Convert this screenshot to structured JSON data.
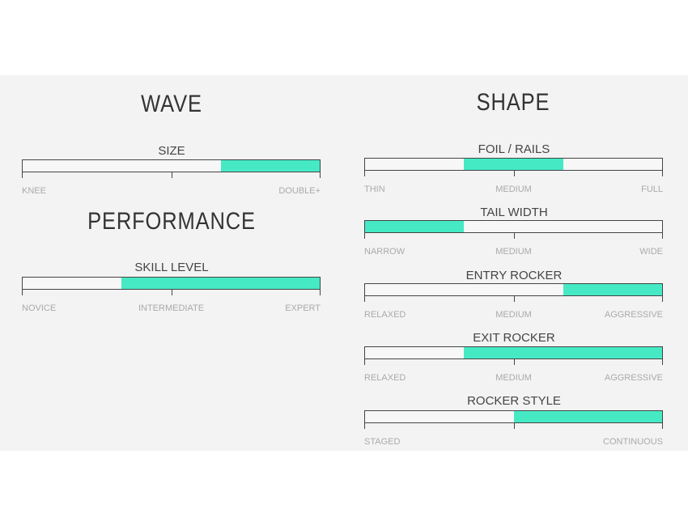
{
  "accent_color": "#45eac5",
  "wave": {
    "title": "WAVE",
    "size": {
      "label": "SIZE",
      "fill": [
        0.667,
        1
      ],
      "scale": [
        "KNEE",
        "",
        "DOUBLE+"
      ]
    }
  },
  "performance": {
    "title": "PERFORMANCE",
    "skill": {
      "label": "SKILL LEVEL",
      "fill": [
        0.333,
        1
      ],
      "scale": [
        "NOVICE",
        "INTERMEDIATE",
        "EXPERT"
      ]
    }
  },
  "shape": {
    "title": "SHAPE",
    "foil": {
      "label": "FOIL / RAILS",
      "fill": [
        0.333,
        0.667
      ],
      "scale": [
        "THIN",
        "MEDIUM",
        "FULL"
      ]
    },
    "tail": {
      "label": "TAIL WIDTH",
      "fill": [
        0,
        0.333
      ],
      "scale": [
        "NARROW",
        "MEDIUM",
        "WIDE"
      ]
    },
    "entry": {
      "label": "ENTRY ROCKER",
      "fill": [
        0.667,
        1
      ],
      "scale": [
        "RELAXED",
        "MEDIUM",
        "AGGRESSIVE"
      ]
    },
    "exit": {
      "label": "EXIT ROCKER",
      "fill": [
        0.333,
        1
      ],
      "scale": [
        "RELAXED",
        "MEDIUM",
        "AGGRESSIVE"
      ]
    },
    "style": {
      "label": "ROCKER STYLE",
      "fill": [
        0.5,
        1
      ],
      "scale": [
        "STAGED",
        "",
        "CONTINUOUS"
      ]
    }
  }
}
